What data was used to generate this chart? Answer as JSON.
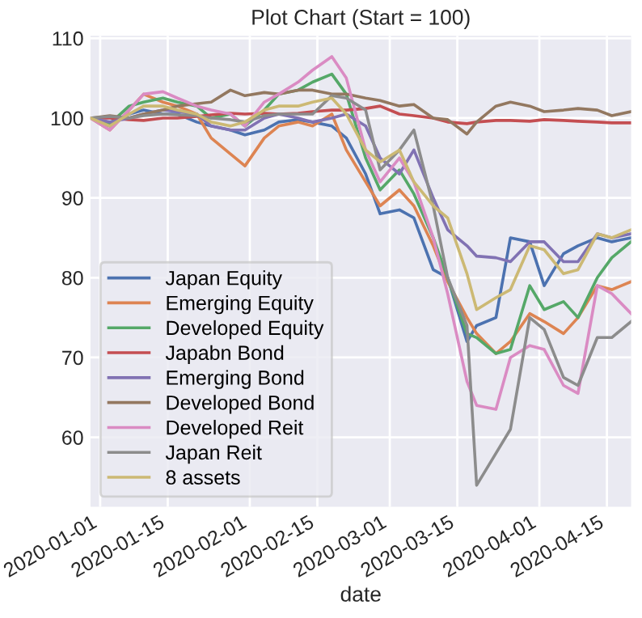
{
  "chart_data": {
    "type": "line",
    "title": "Plot Chart (Start = 100)",
    "xlabel": "date",
    "x": [
      "2019-12-30",
      "2020-01-03",
      "2020-01-07",
      "2020-01-10",
      "2020-01-14",
      "2020-01-17",
      "2020-01-21",
      "2020-01-24",
      "2020-01-28",
      "2020-01-31",
      "2020-02-04",
      "2020-02-07",
      "2020-02-11",
      "2020-02-14",
      "2020-02-18",
      "2020-02-21",
      "2020-02-25",
      "2020-02-28",
      "2020-03-03",
      "2020-03-06",
      "2020-03-10",
      "2020-03-13",
      "2020-03-17",
      "2020-03-19",
      "2020-03-23",
      "2020-03-26",
      "2020-03-30",
      "2020-04-02",
      "2020-04-06",
      "2020-04-09",
      "2020-04-13",
      "2020-04-16",
      "2020-04-20"
    ],
    "series": [
      {
        "name": "Japan Equity",
        "color": "#4c72b0",
        "values": [
          100,
          99,
          100.5,
          101,
          100.5,
          100.5,
          99.5,
          99,
          98.5,
          97.9,
          98.5,
          99.5,
          99.8,
          99.5,
          99,
          97.5,
          93,
          88,
          88.5,
          87.5,
          81,
          80,
          72,
          74,
          75,
          85,
          84.5,
          79,
          83,
          84,
          85,
          84.5,
          85
        ]
      },
      {
        "name": "Emerging Equity",
        "color": "#dd8452",
        "values": [
          100,
          98.5,
          101,
          103,
          102,
          101.5,
          100.5,
          97.5,
          95.5,
          94,
          97.5,
          99,
          99.5,
          99,
          100.5,
          96,
          92,
          89,
          91,
          89,
          84,
          79.5,
          75,
          73,
          70.5,
          72,
          75.5,
          74.5,
          73,
          75,
          79,
          78.5,
          79.5
        ]
      },
      {
        "name": "Developed Equity",
        "color": "#55a868",
        "values": [
          100,
          99.3,
          101.5,
          102,
          102.5,
          102,
          101.5,
          100,
          100.5,
          99,
          101,
          103,
          103.5,
          104.5,
          105.5,
          103,
          95,
          91,
          93.5,
          90.5,
          85,
          80,
          73,
          72.5,
          70.5,
          71,
          79,
          76,
          77,
          75,
          80,
          82.5,
          84.5
        ]
      },
      {
        "name": "Japabn Bond",
        "color": "#c44e52",
        "values": [
          100,
          100,
          99.8,
          99.7,
          100,
          100,
          100.2,
          100.4,
          100.6,
          100.5,
          100.6,
          100.5,
          100.6,
          100.8,
          101,
          101,
          101.2,
          101.5,
          100.5,
          100.3,
          100,
          99.5,
          99.3,
          99.5,
          99.7,
          99.7,
          99.6,
          99.8,
          99.7,
          99.6,
          99.5,
          99.4,
          99.4
        ]
      },
      {
        "name": "Emerging Bond",
        "color": "#8172b3",
        "values": [
          100,
          99.5,
          100,
          100.5,
          101,
          100.8,
          100.5,
          99,
          98.5,
          98.5,
          100,
          100.5,
          100,
          99.5,
          100,
          100.5,
          99,
          95,
          93,
          96,
          90,
          86,
          84,
          82.7,
          82.5,
          82,
          84.5,
          84.5,
          82,
          82,
          85.5,
          85,
          85.5
        ]
      },
      {
        "name": "Developed Bond",
        "color": "#937860",
        "values": [
          100,
          100.3,
          100,
          100.5,
          101,
          101.5,
          101.8,
          102,
          103.5,
          102.8,
          103.2,
          103,
          103.5,
          103.5,
          103,
          103,
          102.5,
          102.2,
          101.5,
          101.7,
          100,
          99.8,
          98,
          99.5,
          101.5,
          102,
          101.5,
          100.8,
          101,
          101.2,
          101,
          100.3,
          100.8
        ]
      },
      {
        "name": "Developed Reit",
        "color": "#da8bc3",
        "values": [
          100,
          98.5,
          101,
          103,
          103.3,
          102.5,
          101.5,
          101,
          100.5,
          99,
          102,
          103,
          104.5,
          106,
          107.7,
          105,
          96,
          92,
          95,
          92,
          85,
          78,
          67,
          64,
          63.5,
          70,
          71.5,
          71,
          66.5,
          65.5,
          79,
          78,
          75.5
        ]
      },
      {
        "name": "Japan Reit",
        "color": "#8c8c8c",
        "values": [
          100,
          100.2,
          100,
          100.3,
          100.5,
          100.4,
          100.3,
          100,
          99.8,
          99.5,
          100.3,
          100.5,
          100.5,
          100.5,
          102.8,
          102.5,
          101,
          93.5,
          96,
          98.5,
          89,
          80,
          74,
          54,
          58,
          61,
          75,
          73.5,
          67.5,
          66.5,
          72.5,
          72.5,
          74.5
        ]
      },
      {
        "name": "8 assets",
        "color": "#ccb974",
        "values": [
          100,
          99,
          100.5,
          101.5,
          101.5,
          101,
          100.5,
          99.5,
          99,
          99.5,
          101,
          101.5,
          101.5,
          102,
          102.5,
          100.5,
          96,
          94.5,
          96,
          92,
          89,
          87.5,
          80.5,
          76,
          77.5,
          78.5,
          84,
          83.5,
          80.5,
          81,
          85.5,
          85,
          86
        ]
      }
    ],
    "xlim": [
      "2019-12-30",
      "2020-04-20"
    ],
    "xticks": [
      "2020-01-01",
      "2020-01-15",
      "2020-02-01",
      "2020-02-15",
      "2020-03-01",
      "2020-03-15",
      "2020-04-01",
      "2020-04-15"
    ],
    "ylim": [
      51.3,
      110.3
    ],
    "yticks": [
      60,
      70,
      80,
      90,
      100,
      110
    ],
    "grid": true,
    "legend": "bottom left"
  }
}
